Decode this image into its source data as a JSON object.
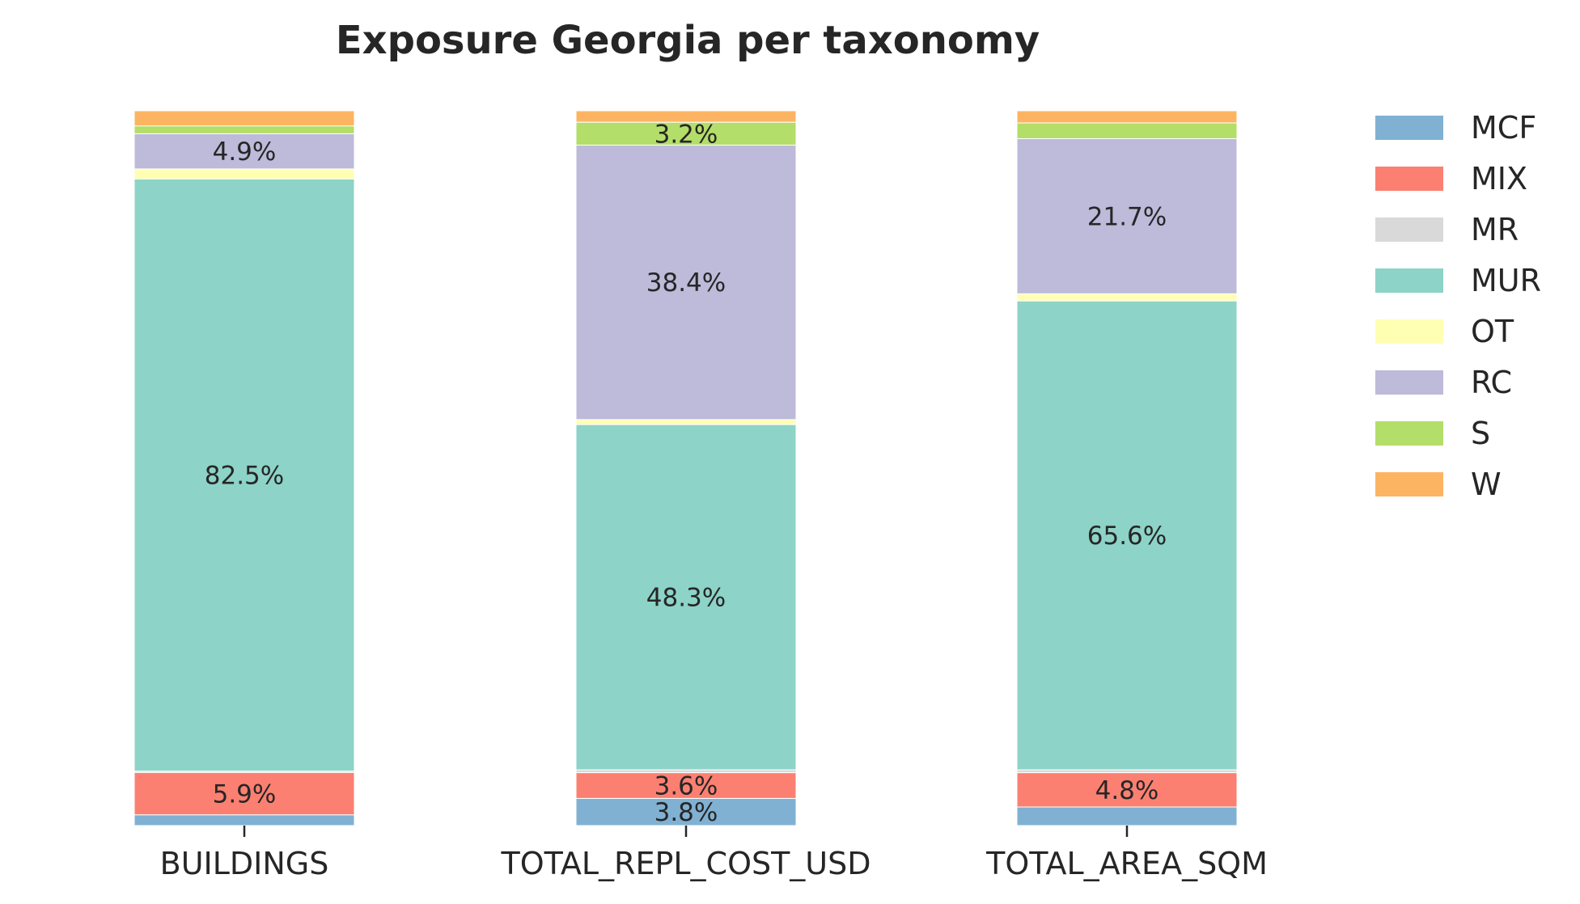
{
  "chart_data": {
    "type": "bar",
    "stacked": true,
    "normalized_to_percent": true,
    "title": "Exposure Georgia per taxonomy",
    "xlabel": "",
    "ylabel": "",
    "ylim": [
      0,
      100
    ],
    "grid": false,
    "legend_position": "right",
    "categories": [
      "BUILDINGS",
      "TOTAL_REPL_COST_USD",
      "TOTAL_AREA_SQM"
    ],
    "series": [
      {
        "name": "MCF",
        "color": "#80b1d3",
        "values": [
          1.5,
          3.8,
          2.6
        ]
      },
      {
        "name": "MIX",
        "color": "#fb8072",
        "values": [
          5.9,
          3.6,
          4.8
        ]
      },
      {
        "name": "MR",
        "color": "#d9d9d9",
        "values": [
          0.2,
          0.4,
          0.4
        ]
      },
      {
        "name": "MUR",
        "color": "#8dd3c7",
        "values": [
          82.5,
          48.3,
          65.6
        ]
      },
      {
        "name": "OT",
        "color": "#ffffb3",
        "values": [
          1.4,
          0.7,
          1.0
        ]
      },
      {
        "name": "RC",
        "color": "#bebada",
        "values": [
          4.9,
          38.4,
          21.7
        ]
      },
      {
        "name": "S",
        "color": "#b3de69",
        "values": [
          1.1,
          3.2,
          2.2
        ]
      },
      {
        "name": "W",
        "color": "#fdb462",
        "values": [
          2.1,
          1.6,
          1.7
        ]
      }
    ],
    "data_labels": [
      {
        "category": "BUILDINGS",
        "series": "MIX",
        "text": "5.9%"
      },
      {
        "category": "BUILDINGS",
        "series": "MUR",
        "text": "82.5%"
      },
      {
        "category": "BUILDINGS",
        "series": "RC",
        "text": "4.9%"
      },
      {
        "category": "TOTAL_REPL_COST_USD",
        "series": "MCF",
        "text": "3.8%"
      },
      {
        "category": "TOTAL_REPL_COST_USD",
        "series": "MIX",
        "text": "3.6%"
      },
      {
        "category": "TOTAL_REPL_COST_USD",
        "series": "MUR",
        "text": "48.3%"
      },
      {
        "category": "TOTAL_REPL_COST_USD",
        "series": "RC",
        "text": "38.4%"
      },
      {
        "category": "TOTAL_REPL_COST_USD",
        "series": "S",
        "text": "3.2%"
      },
      {
        "category": "TOTAL_AREA_SQM",
        "series": "MIX",
        "text": "4.8%"
      },
      {
        "category": "TOTAL_AREA_SQM",
        "series": "MUR",
        "text": "65.6%"
      },
      {
        "category": "TOTAL_AREA_SQM",
        "series": "RC",
        "text": "21.7%"
      }
    ]
  }
}
